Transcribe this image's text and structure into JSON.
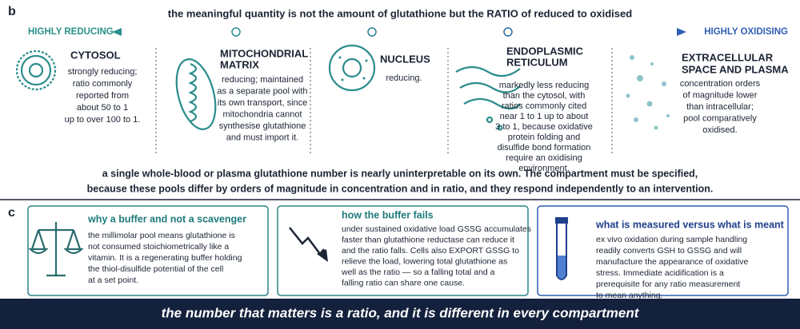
{
  "section_b": {
    "label": "b",
    "title": "the meaningful quantity is not the amount of glutathione but the RATIO of reduced to oxidised",
    "left_label": "HIGHLY REDUCING",
    "right_label": "HIGHLY OXIDISING",
    "compartments": [
      {
        "title": [
          "CYTOSOL"
        ],
        "body": [
          "strongly reducing;",
          "ratio commonly",
          "reported from",
          "about 50 to 1",
          "up to over 100 to 1."
        ]
      },
      {
        "title": [
          "MITOCHONDRIAL",
          "MATRIX"
        ],
        "body": [
          "reducing; maintained",
          "as a separate pool with",
          "its own transport, since",
          "mitochondria cannot",
          "synthesise glutathione",
          "and must import it."
        ]
      },
      {
        "title": [
          "NUCLEUS"
        ],
        "body": [
          "reducing."
        ]
      },
      {
        "title": [
          "ENDOPLASMIC",
          "RETICULUM"
        ],
        "body": [
          "markedly less reducing",
          "than the cytosol, with",
          "ratios commonly cited",
          "near 1 to 1 up to about",
          "3 to 1, because oxidative",
          "protein folding and",
          "disulfide bond formation",
          "require an oxidising",
          "environment."
        ]
      },
      {
        "title": [
          "EXTRACELLULAR",
          "SPACE AND PLASMA"
        ],
        "body": [
          "concentration orders",
          "of magnitude lower",
          "than intracellular;",
          "pool comparatively",
          "oxidised."
        ]
      }
    ],
    "note": [
      "a single whole-blood or plasma glutathione number is nearly uninterpretable on its own. The compartment must be specified,",
      "because these pools differ by orders of magnitude in concentration and in ratio, and they respond independently to an intervention."
    ]
  },
  "section_c": {
    "label": "c",
    "cards": [
      {
        "title": "why a buffer and not a scavenger",
        "body": [
          "the millimolar pool means glutathione is",
          "not consumed stoichiometrically like a",
          "vitamin. It is a regenerating buffer holding",
          "the thiol-disulfide potential of the cell",
          "at a set point."
        ]
      },
      {
        "title": "how the buffer fails",
        "body": [
          "under sustained oxidative load GSSG accumulates",
          "faster than glutathione reductase can reduce it",
          "and the ratio falls. Cells also EXPORT GSSG to",
          "relieve the load, lowering total glutathione as",
          "well as the ratio — so a falling total and a",
          "falling ratio can share one cause."
        ]
      },
      {
        "title": "what is measured versus what is meant",
        "body": [
          "ex vivo oxidation during sample handling",
          "readily converts GSH to GSSG and will",
          "manufacture the appearance of oxidative",
          "stress. Immediate acidification is a",
          "prerequisite for any ratio measurement",
          "to mean anything."
        ]
      }
    ]
  },
  "banner": "the number that matters is a ratio, and it is different in every compartment"
}
